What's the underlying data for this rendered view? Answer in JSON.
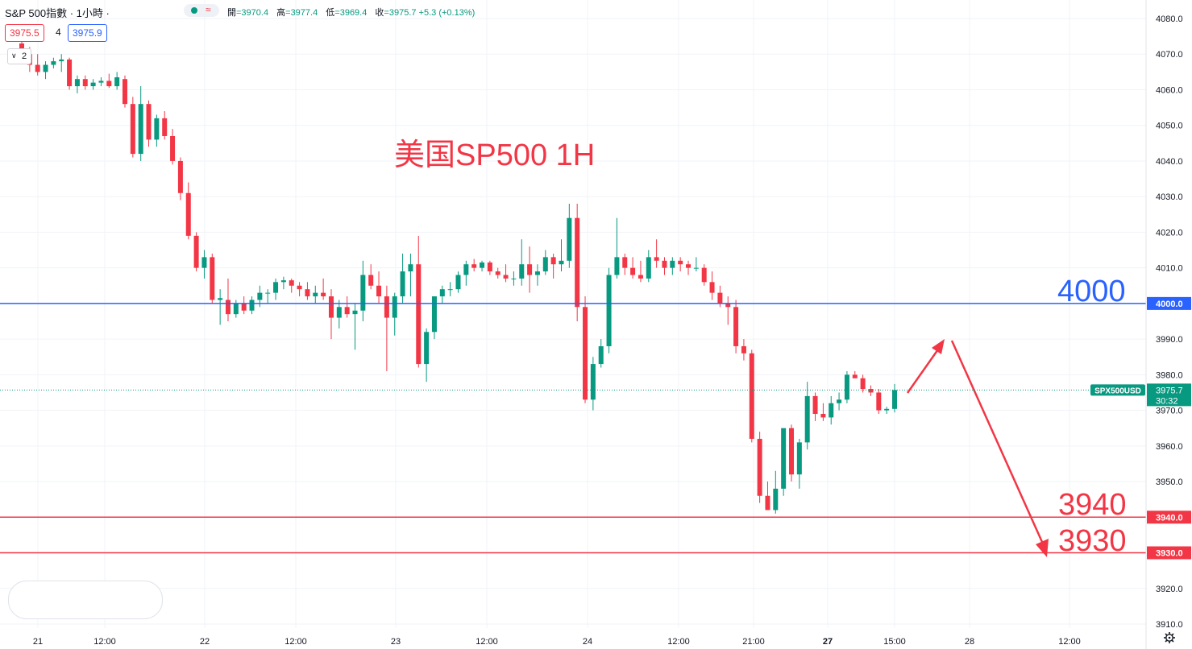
{
  "header": {
    "symbol_title": "S&P 500指數 · 1小時 ·",
    "ohlc": [
      {
        "label": "開",
        "value": "=3970.4"
      },
      {
        "label": "高",
        "value": "=3977.4"
      },
      {
        "label": "低",
        "value": "=3969.4"
      },
      {
        "label": "收",
        "value": "=3975.7 +5.3 (+0.13%)"
      }
    ],
    "status_wave": "≈"
  },
  "trade": {
    "sell_price": "3975.5",
    "spread": "4",
    "buy_price": "3975.9"
  },
  "indicators_toggle": {
    "count": "2",
    "chevron": "∨"
  },
  "annotation_text": "美国SP500 1H",
  "levels": [
    {
      "price": 4000.0,
      "label": "4000",
      "tag": "4000.0",
      "color": "#2962ff"
    },
    {
      "price": 3940.0,
      "label": "3940",
      "tag": "3940.0",
      "color": "#f23645"
    },
    {
      "price": 3930.0,
      "label": "3930",
      "tag": "3930.0",
      "color": "#f23645"
    }
  ],
  "current_price": {
    "symbol": "SPX500USD",
    "price": "3975.7",
    "countdown": "30:32",
    "value": 3975.7,
    "color": "#089981"
  },
  "colors": {
    "up": "#089981",
    "down": "#f23645",
    "grid": "#f0f3fa",
    "axis_text": "#131722"
  },
  "icons": {
    "settings": "gear-icon",
    "collapse": "chevron-down-icon",
    "status": "market-open-dot-icon"
  },
  "chart_data": {
    "type": "candlestick",
    "title": "",
    "ylim": [
      3907,
      4083
    ],
    "y_ticks": [
      "4080.0",
      "4070.0",
      "4060.0",
      "4050.0",
      "4040.0",
      "4030.0",
      "4020.0",
      "4010.0",
      "4000.0",
      "3990.0",
      "3980.0",
      "3970.0",
      "3960.0",
      "3950.0",
      "3940.0",
      "3930.0",
      "3920.0",
      "3910.0"
    ],
    "x_ticks": [
      "21",
      "12:00",
      "22",
      "12:00",
      "23",
      "12:00",
      "24",
      "12:00",
      "21:00",
      "27",
      "15:00",
      "28",
      "12:00"
    ],
    "x_tick_bold": [
      "27"
    ],
    "candles": [
      [
        4073.0,
        4074.0,
        4068.0,
        4070.0
      ],
      [
        4070.0,
        4072.0,
        4065.0,
        4067.0
      ],
      [
        4067.0,
        4070.0,
        4064.0,
        4065.0
      ],
      [
        4065.0,
        4068.0,
        4063.0,
        4067.0
      ],
      [
        4067.0,
        4069.0,
        4066.0,
        4068.0
      ],
      [
        4068.0,
        4070.0,
        4065.0,
        4068.5
      ],
      [
        4068.5,
        4069.0,
        4060.0,
        4061.0
      ],
      [
        4061.0,
        4064.0,
        4059.0,
        4063.0
      ],
      [
        4063.0,
        4064.0,
        4060.0,
        4061.0
      ],
      [
        4061.0,
        4063.0,
        4060.0,
        4062.0
      ],
      [
        4062.0,
        4063.5,
        4061.0,
        4062.5
      ],
      [
        4062.5,
        4064.5,
        4060.5,
        4061.0
      ],
      [
        4061.0,
        4065.0,
        4060.0,
        4063.5
      ],
      [
        4063.0,
        4064.0,
        4055.0,
        4056.0
      ],
      [
        4056.0,
        4058.0,
        4041.0,
        4042.0
      ],
      [
        4042.0,
        4061.0,
        4040.0,
        4056.0
      ],
      [
        4056.0,
        4057.0,
        4044.0,
        4046.0
      ],
      [
        4046.0,
        4053.0,
        4044.0,
        4052.0
      ],
      [
        4052.0,
        4054.0,
        4046.0,
        4047.0
      ],
      [
        4047.0,
        4049.0,
        4039.0,
        4040.0
      ],
      [
        4040.0,
        4041.0,
        4029.0,
        4031.0
      ],
      [
        4031.0,
        4034.0,
        4018.0,
        4019.0
      ],
      [
        4019.0,
        4020.0,
        4009.0,
        4010.0
      ],
      [
        4010.0,
        4015.0,
        4007.0,
        4013.0
      ],
      [
        4013.0,
        4014.0,
        4000.0,
        4001.0
      ],
      [
        4001.0,
        4004.0,
        3994.0,
        4001.5
      ],
      [
        4001.0,
        4007.0,
        3995.0,
        3997.0
      ],
      [
        3997.0,
        4001.0,
        3996.0,
        4000.0
      ],
      [
        4000.0,
        4002.0,
        3997.0,
        3998.0
      ],
      [
        3998.0,
        4002.0,
        3997.0,
        4001.0
      ],
      [
        4001.0,
        4005.0,
        3999.0,
        4003.0
      ],
      [
        4003.0,
        4004.0,
        4000.0,
        4003.0
      ],
      [
        4003.0,
        4007.0,
        4001.0,
        4006.0
      ],
      [
        4006.0,
        4007.5,
        4004.0,
        4006.5
      ],
      [
        4006.5,
        4007.0,
        4003.0,
        4005.0
      ],
      [
        4005.0,
        4006.0,
        4002.0,
        4004.0
      ],
      [
        4004.0,
        4006.0,
        4001.0,
        4002.0
      ],
      [
        4002.0,
        4005.0,
        4000.0,
        4003.0
      ],
      [
        4003.0,
        4007.0,
        4001.0,
        4002.0
      ],
      [
        4002.0,
        4004.0,
        3990.0,
        3996.0
      ],
      [
        3996.0,
        4001.0,
        3993.0,
        3999.0
      ],
      [
        3999.0,
        4002.0,
        3996.0,
        3997.0
      ],
      [
        3997.0,
        4000.0,
        3987.0,
        3998.0
      ],
      [
        3998.0,
        4012.0,
        3995.0,
        4008.0
      ],
      [
        4008.0,
        4011.0,
        4004.0,
        4005.0
      ],
      [
        4005.0,
        4009.0,
        4000.0,
        4002.0
      ],
      [
        4002.0,
        4005.0,
        3981.0,
        3996.0
      ],
      [
        3996.0,
        4003.0,
        3991.0,
        4002.0
      ],
      [
        4002.0,
        4014.0,
        4000.0,
        4009.0
      ],
      [
        4009.0,
        4014.0,
        4002.0,
        4011.0
      ],
      [
        4011.0,
        4019.0,
        3982.0,
        3983.0
      ],
      [
        3983.0,
        3993.0,
        3978.0,
        3992.0
      ],
      [
        3992.0,
        4002.0,
        3990.0,
        4002.0
      ],
      [
        4002.0,
        4005.0,
        4000.0,
        4004.0
      ],
      [
        4004.0,
        4006.0,
        4002.0,
        4004.0
      ],
      [
        4004.0,
        4009.0,
        4003.0,
        4008.0
      ],
      [
        4008.0,
        4012.0,
        4005.0,
        4011.0
      ],
      [
        4011.0,
        4012.5,
        4009.0,
        4010.0
      ],
      [
        4010.0,
        4012.0,
        4009.0,
        4011.5
      ],
      [
        4011.5,
        4012.0,
        4008.0,
        4009.0
      ],
      [
        4009.0,
        4010.0,
        4007.0,
        4008.0
      ],
      [
        4008.0,
        4011.0,
        4006.0,
        4007.0
      ],
      [
        4007.0,
        4009.0,
        4005.0,
        4007.0
      ],
      [
        4007.0,
        4018.0,
        4005.0,
        4011.0
      ],
      [
        4011.0,
        4016.0,
        4003.0,
        4008.0
      ],
      [
        4008.0,
        4011.0,
        4005.0,
        4009.0
      ],
      [
        4009.0,
        4015.0,
        4008.0,
        4013.0
      ],
      [
        4013.0,
        4014.0,
        4007.0,
        4011.0
      ],
      [
        4011.0,
        4018.0,
        4009.0,
        4012.0
      ],
      [
        4012.0,
        4028.0,
        4010.0,
        4024.0
      ],
      [
        4024.0,
        4028.0,
        3995.0,
        3999.0
      ],
      [
        3999.0,
        4002.0,
        3972.0,
        3973.0
      ],
      [
        3973.0,
        3985.0,
        3970.0,
        3983.0
      ],
      [
        3983.0,
        3990.0,
        3982.0,
        3988.0
      ],
      [
        3988.0,
        4010.0,
        3986.0,
        4008.0
      ],
      [
        4008.0,
        4024.0,
        4007.0,
        4013.0
      ],
      [
        4013.0,
        4014.0,
        4008.0,
        4010.0
      ],
      [
        4010.0,
        4013.0,
        4007.0,
        4008.0
      ],
      [
        4008.0,
        4012.0,
        4006.0,
        4007.0
      ],
      [
        4007.0,
        4015.0,
        4006.0,
        4013.0
      ],
      [
        4013.0,
        4018.0,
        4010.0,
        4012.0
      ],
      [
        4012.0,
        4013.0,
        4008.0,
        4010.0
      ],
      [
        4010.0,
        4013.0,
        4008.0,
        4012.0
      ],
      [
        4012.0,
        4013.0,
        4009.0,
        4011.0
      ],
      [
        4011.0,
        4012.0,
        4008.0,
        4010.0
      ],
      [
        4010.0,
        4013.0,
        4009.0,
        4010.0
      ],
      [
        4010.0,
        4011.0,
        4005.0,
        4006.0
      ],
      [
        4006.0,
        4009.0,
        4001.0,
        4003.0
      ],
      [
        4003.0,
        4005.0,
        3999.0,
        4000.0
      ],
      [
        4000.0,
        4002.0,
        3994.0,
        3999.0
      ],
      [
        3999.0,
        4001.0,
        3986.0,
        3988.0
      ],
      [
        3988.0,
        3990.0,
        3984.0,
        3986.0
      ],
      [
        3986.0,
        3987.0,
        3961.0,
        3962.0
      ],
      [
        3962.0,
        3964.0,
        3944.0,
        3946.0
      ],
      [
        3946.0,
        3950.0,
        3942.0,
        3942.0
      ],
      [
        3942.0,
        3953.0,
        3941.0,
        3948.0
      ],
      [
        3948.0,
        3964.0,
        3946.0,
        3965.0
      ],
      [
        3965.0,
        3966.0,
        3950.0,
        3952.0
      ],
      [
        3952.0,
        3962.0,
        3948.0,
        3961.0
      ],
      [
        3961.0,
        3978.0,
        3959.0,
        3974.0
      ],
      [
        3974.0,
        3975.0,
        3967.0,
        3969.0
      ],
      [
        3969.0,
        3972.0,
        3967.0,
        3968.0
      ],
      [
        3968.0,
        3974.0,
        3966.0,
        3972.0
      ],
      [
        3972.0,
        3975.0,
        3970.0,
        3973.0
      ],
      [
        3973.0,
        3981.0,
        3972.0,
        3980.0
      ],
      [
        3980.0,
        3981.0,
        3979.0,
        3979.0
      ],
      [
        3979.0,
        3980.0,
        3975.0,
        3976.0
      ],
      [
        3976.0,
        3977.0,
        3974.0,
        3975.0
      ],
      [
        3975.0,
        3976.0,
        3969.0,
        3970.0
      ],
      [
        3970.0,
        3971.0,
        3969.0,
        3970.4
      ],
      [
        3970.4,
        3977.4,
        3969.4,
        3975.7
      ]
    ]
  }
}
